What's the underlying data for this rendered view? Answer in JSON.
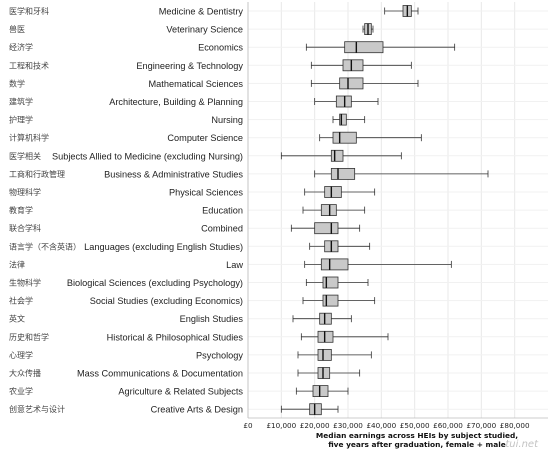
{
  "chart_data": {
    "type": "boxplot",
    "xlabel_line1": "Median earnings across HEIs by subject studied,",
    "xlabel_line2": "five years after graduation, female + male",
    "x_ticks": [
      "£0",
      "£10,000",
      "£20,000",
      "£30,000",
      "£40,000",
      "£50,000",
      "£60,000",
      "£70,000",
      "£80,000"
    ],
    "xlim": [
      0,
      90000
    ],
    "grid": true,
    "categories": [
      {
        "en": "Medicine & Dentistry",
        "zh": "医学和牙科"
      },
      {
        "en": "Veterinary Science",
        "zh": "兽医"
      },
      {
        "en": "Economics",
        "zh": "经济学"
      },
      {
        "en": "Engineering & Technology",
        "zh": "工程和技术"
      },
      {
        "en": "Mathematical Sciences",
        "zh": "数学"
      },
      {
        "en": "Architecture, Building & Planning",
        "zh": "建筑学"
      },
      {
        "en": "Nursing",
        "zh": "护理学"
      },
      {
        "en": "Computer Science",
        "zh": "计算机科学"
      },
      {
        "en": "Subjects Allied to Medicine (excluding Nursing)",
        "zh": "医学相关"
      },
      {
        "en": "Business & Administrative Studies",
        "zh": "工商和行政管理"
      },
      {
        "en": "Physical Sciences",
        "zh": "物理科学"
      },
      {
        "en": "Education",
        "zh": "教育学"
      },
      {
        "en": "Combined",
        "zh": "联合学科"
      },
      {
        "en": "Languages (excluding English Studies)",
        "zh": "语言学（不含英语）"
      },
      {
        "en": "Law",
        "zh": "法律"
      },
      {
        "en": "Biological Sciences (excluding Psychology)",
        "zh": "生物科学"
      },
      {
        "en": "Social Studies (excluding Economics)",
        "zh": "社会学"
      },
      {
        "en": "English Studies",
        "zh": "英文"
      },
      {
        "en": "Historical & Philosophical Studies",
        "zh": "历史和哲学"
      },
      {
        "en": "Psychology",
        "zh": "心理学"
      },
      {
        "en": "Mass Communications & Documentation",
        "zh": "大众传播"
      },
      {
        "en": "Agriculture & Related Subjects",
        "zh": "农业学"
      },
      {
        "en": "Creative Arts & Design",
        "zh": "创意艺术与设计"
      }
    ],
    "boxes": [
      {
        "min": 41000,
        "q1": 46500,
        "median": 47800,
        "q3": 49000,
        "max": 51000
      },
      {
        "min": 34500,
        "q1": 35000,
        "median": 36000,
        "q3": 37000,
        "max": 37500
      },
      {
        "min": 17500,
        "q1": 29000,
        "median": 32500,
        "q3": 40500,
        "max": 62000
      },
      {
        "min": 19000,
        "q1": 28500,
        "median": 31000,
        "q3": 34500,
        "max": 49000
      },
      {
        "min": 19000,
        "q1": 27500,
        "median": 30000,
        "q3": 34500,
        "max": 51000
      },
      {
        "min": 20000,
        "q1": 26500,
        "median": 29000,
        "q3": 31000,
        "max": 39000
      },
      {
        "min": 25500,
        "q1": 27500,
        "median": 28000,
        "q3": 29500,
        "max": 35000
      },
      {
        "min": 21500,
        "q1": 25500,
        "median": 27500,
        "q3": 32500,
        "max": 52000
      },
      {
        "min": 10000,
        "q1": 25000,
        "median": 26000,
        "q3": 28500,
        "max": 46000
      },
      {
        "min": 20000,
        "q1": 25000,
        "median": 27000,
        "q3": 32000,
        "max": 72000
      },
      {
        "min": 17000,
        "q1": 23000,
        "median": 25000,
        "q3": 28000,
        "max": 38000
      },
      {
        "min": 16500,
        "q1": 22000,
        "median": 24500,
        "q3": 26500,
        "max": 35000
      },
      {
        "min": 13000,
        "q1": 20000,
        "median": 25000,
        "q3": 27000,
        "max": 33500
      },
      {
        "min": 18500,
        "q1": 23000,
        "median": 25000,
        "q3": 27000,
        "max": 36500
      },
      {
        "min": 17000,
        "q1": 22000,
        "median": 24500,
        "q3": 30000,
        "max": 61000
      },
      {
        "min": 17500,
        "q1": 22500,
        "median": 23500,
        "q3": 27000,
        "max": 36000
      },
      {
        "min": 16500,
        "q1": 22500,
        "median": 23500,
        "q3": 27000,
        "max": 38000
      },
      {
        "min": 13500,
        "q1": 21500,
        "median": 23000,
        "q3": 25000,
        "max": 31000
      },
      {
        "min": 16000,
        "q1": 21000,
        "median": 23000,
        "q3": 25500,
        "max": 42000
      },
      {
        "min": 15000,
        "q1": 21000,
        "median": 22500,
        "q3": 25000,
        "max": 37000
      },
      {
        "min": 15000,
        "q1": 21000,
        "median": 22500,
        "q3": 24500,
        "max": 33500
      },
      {
        "min": 14500,
        "q1": 19500,
        "median": 21500,
        "q3": 24000,
        "max": 30000
      },
      {
        "min": 10000,
        "q1": 18500,
        "median": 20000,
        "q3": 22000,
        "max": 27000
      }
    ],
    "colors": {
      "box_fill": "#c9c9c9",
      "box_stroke": "#333333",
      "whisker": "#333333",
      "grid": "#e8e8e8",
      "label": "#222222"
    }
  },
  "watermark": "tui.net"
}
